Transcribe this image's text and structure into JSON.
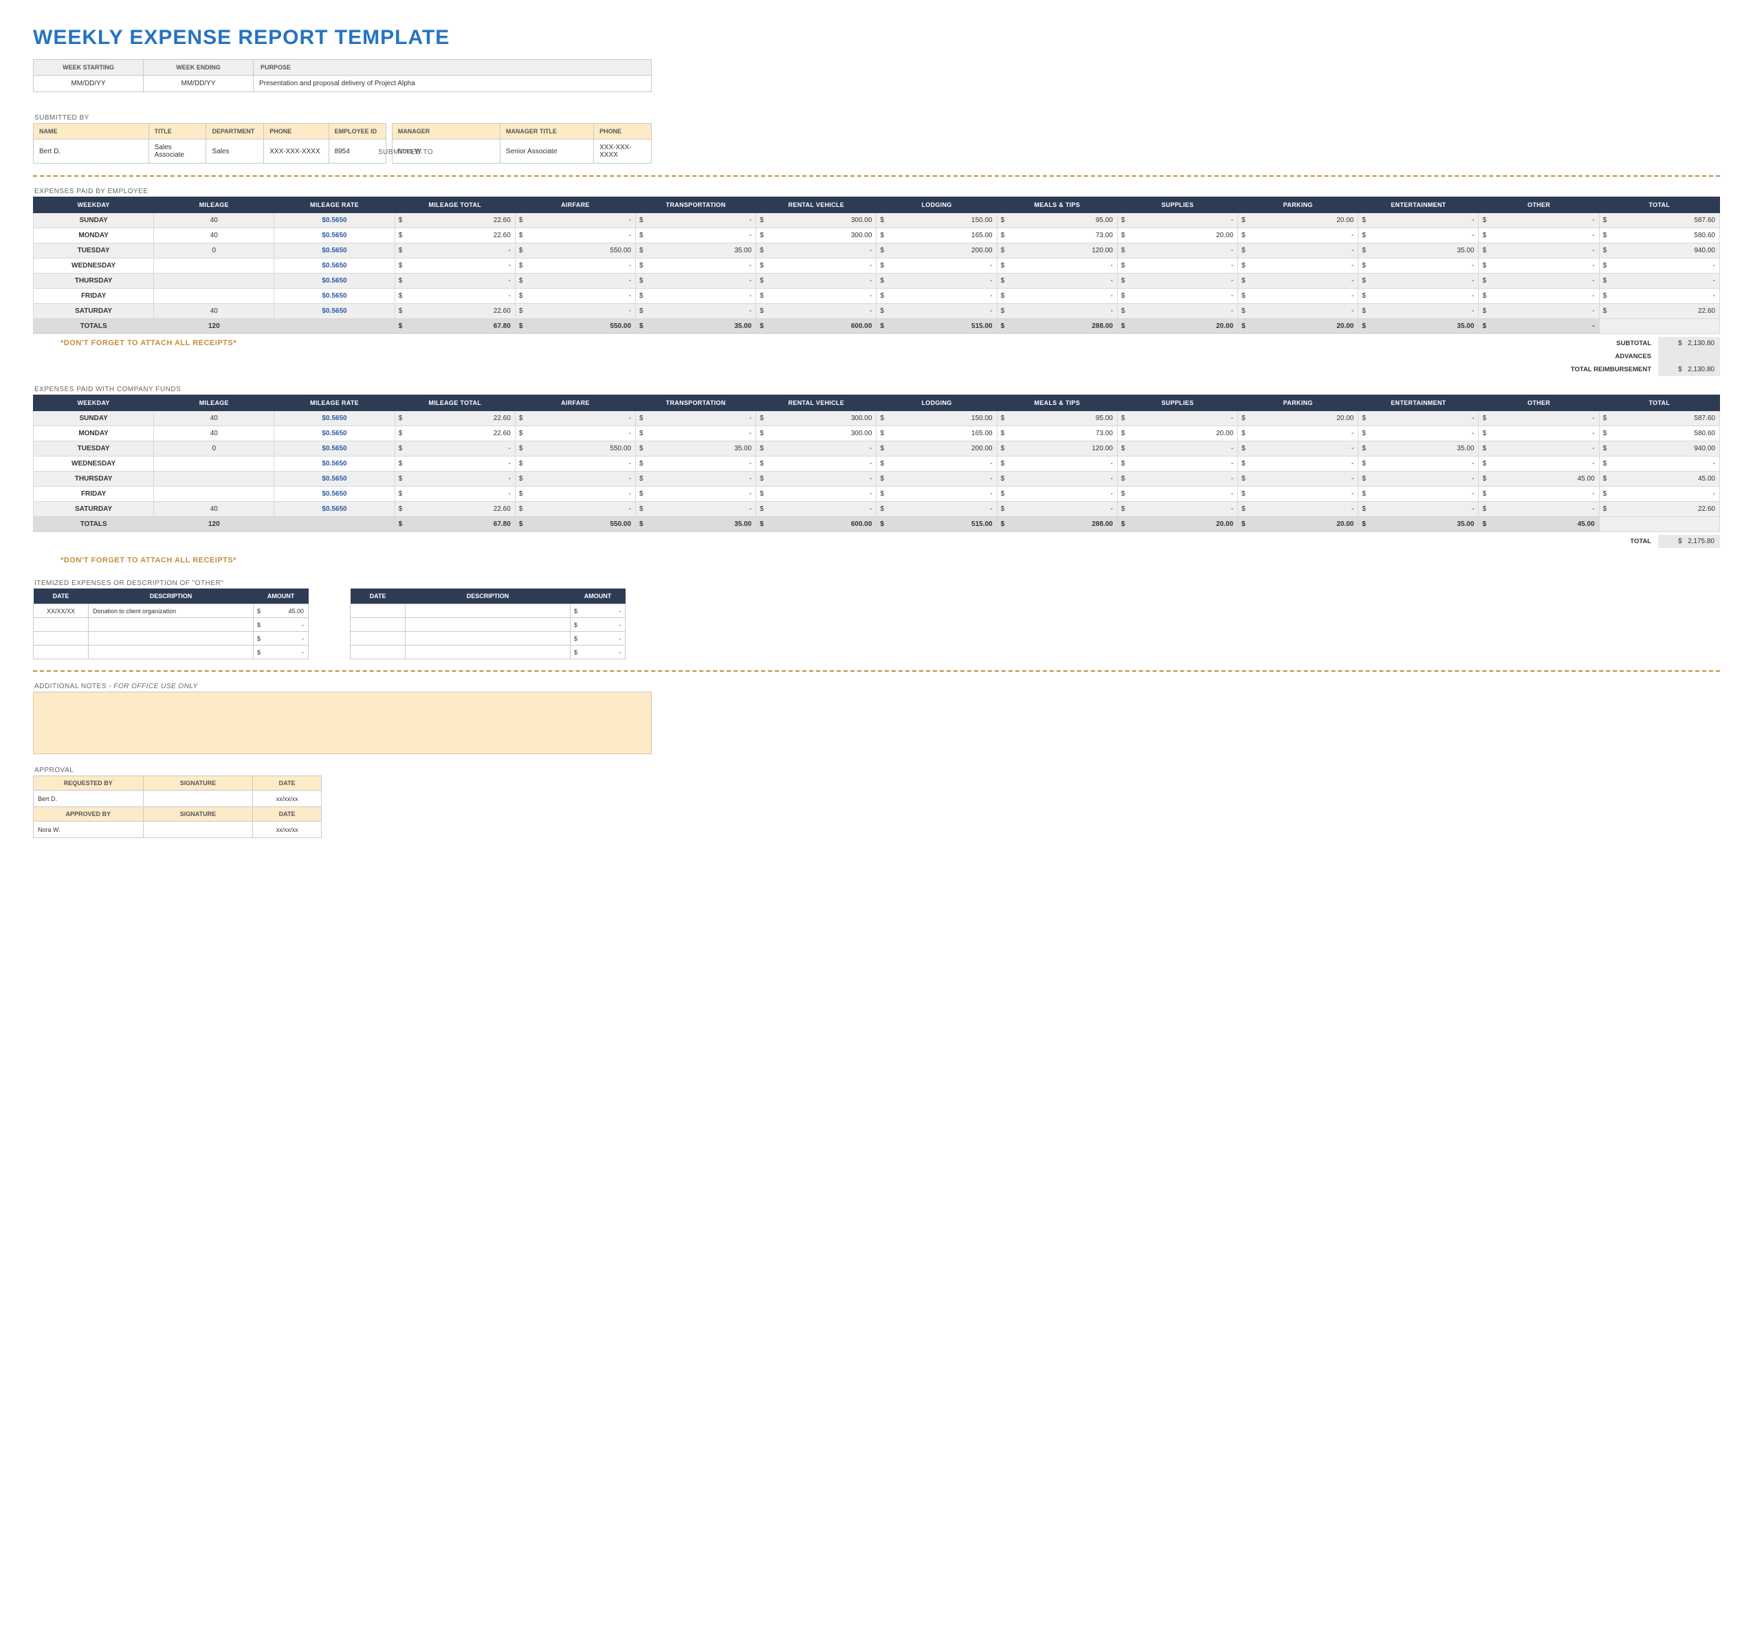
{
  "title": "WEEKLY EXPENSE REPORT TEMPLATE",
  "colors": {
    "title": "#2573c1",
    "header_dark": "#2e3b54",
    "cream": "#fdebc8",
    "row_alt": "#efefef",
    "totals_bg": "#dcdcdc",
    "dashed": "#c58c3a",
    "rate_color": "#2e5aa8",
    "note_color": "#c58c3a"
  },
  "meta": {
    "headers": {
      "week_starting": "WEEK STARTING",
      "week_ending": "WEEK ENDING",
      "purpose": "PURPOSE"
    },
    "week_starting": "MM/DD/YY",
    "week_ending": "MM/DD/YY",
    "purpose": "Presentation and proposal delivery of Project Alpha"
  },
  "submitted_by": {
    "label": "SUBMITTED BY",
    "headers": {
      "name": "NAME",
      "title": "TITLE",
      "department": "DEPARTMENT",
      "phone": "PHONE",
      "employee_id": "EMPLOYEE ID"
    },
    "name": "Bert D.",
    "title": "Sales Associate",
    "department": "Sales",
    "phone": "XXX-XXX-XXXX",
    "employee_id": "8954"
  },
  "submitted_to": {
    "label": "SUBMITTED TO",
    "headers": {
      "manager": "MANAGER",
      "manager_title": "MANAGER TITLE",
      "phone": "PHONE"
    },
    "manager": "Nora W.",
    "manager_title": "Senior Associate",
    "phone": "XXX-XXX-XXXX"
  },
  "expense_columns": [
    "WEEKDAY",
    "MILEAGE",
    "MILEAGE RATE",
    "MILEAGE TOTAL",
    "AIRFARE",
    "TRANSPORTATION",
    "RENTAL VEHICLE",
    "LODGING",
    "MEALS & TIPS",
    "SUPPLIES",
    "PARKING",
    "ENTERTAINMENT",
    "OTHER",
    "TOTAL"
  ],
  "mileage_rate_display": "$0.5650",
  "dash": "-",
  "currency": "$",
  "employee_section": {
    "label": "EXPENSES PAID BY EMPLOYEE",
    "rows": [
      {
        "day": "SUNDAY",
        "mileage": "40",
        "mileage_total": "22.60",
        "airfare": "-",
        "transport": "-",
        "rental": "300.00",
        "lodging": "150.00",
        "meals": "95.00",
        "supplies": "-",
        "parking": "20.00",
        "entertainment": "-",
        "other": "-",
        "total": "587.60"
      },
      {
        "day": "MONDAY",
        "mileage": "40",
        "mileage_total": "22.60",
        "airfare": "-",
        "transport": "-",
        "rental": "300.00",
        "lodging": "165.00",
        "meals": "73.00",
        "supplies": "20.00",
        "parking": "-",
        "entertainment": "-",
        "other": "-",
        "total": "580.60"
      },
      {
        "day": "TUESDAY",
        "mileage": "0",
        "mileage_total": "-",
        "airfare": "550.00",
        "transport": "35.00",
        "rental": "-",
        "lodging": "200.00",
        "meals": "120.00",
        "supplies": "-",
        "parking": "-",
        "entertainment": "35.00",
        "other": "-",
        "total": "940.00"
      },
      {
        "day": "WEDNESDAY",
        "mileage": "",
        "mileage_total": "-",
        "airfare": "-",
        "transport": "-",
        "rental": "-",
        "lodging": "-",
        "meals": "-",
        "supplies": "-",
        "parking": "-",
        "entertainment": "-",
        "other": "-",
        "total": "-"
      },
      {
        "day": "THURSDAY",
        "mileage": "",
        "mileage_total": "-",
        "airfare": "-",
        "transport": "-",
        "rental": "-",
        "lodging": "-",
        "meals": "-",
        "supplies": "-",
        "parking": "-",
        "entertainment": "-",
        "other": "-",
        "total": "-"
      },
      {
        "day": "FRIDAY",
        "mileage": "",
        "mileage_total": "-",
        "airfare": "-",
        "transport": "-",
        "rental": "-",
        "lodging": "-",
        "meals": "-",
        "supplies": "-",
        "parking": "-",
        "entertainment": "-",
        "other": "-",
        "total": "-"
      },
      {
        "day": "SATURDAY",
        "mileage": "40",
        "mileage_total": "22.60",
        "airfare": "-",
        "transport": "-",
        "rental": "-",
        "lodging": "-",
        "meals": "-",
        "supplies": "-",
        "parking": "-",
        "entertainment": "-",
        "other": "-",
        "total": "22.60"
      }
    ],
    "totals": {
      "day": "TOTALS",
      "mileage": "120",
      "mileage_total": "67.80",
      "airfare": "550.00",
      "transport": "35.00",
      "rental": "600.00",
      "lodging": "515.00",
      "meals": "288.00",
      "supplies": "20.00",
      "parking": "20.00",
      "entertainment": "35.00",
      "other": "-",
      "total": ""
    },
    "summary": {
      "subtotal_label": "SUBTOTAL",
      "subtotal": "2,130.80",
      "advances_label": "ADVANCES",
      "advances": "",
      "reimbursement_label": "TOTAL REIMBURSEMENT",
      "reimbursement": "2,130.80"
    }
  },
  "company_section": {
    "label": "EXPENSES PAID WITH COMPANY FUNDS",
    "rows": [
      {
        "day": "SUNDAY",
        "mileage": "40",
        "mileage_total": "22.60",
        "airfare": "-",
        "transport": "-",
        "rental": "300.00",
        "lodging": "150.00",
        "meals": "95.00",
        "supplies": "-",
        "parking": "20.00",
        "entertainment": "-",
        "other": "-",
        "total": "587.60"
      },
      {
        "day": "MONDAY",
        "mileage": "40",
        "mileage_total": "22.60",
        "airfare": "-",
        "transport": "-",
        "rental": "300.00",
        "lodging": "165.00",
        "meals": "73.00",
        "supplies": "20.00",
        "parking": "-",
        "entertainment": "-",
        "other": "-",
        "total": "580.60"
      },
      {
        "day": "TUESDAY",
        "mileage": "0",
        "mileage_total": "-",
        "airfare": "550.00",
        "transport": "35.00",
        "rental": "-",
        "lodging": "200.00",
        "meals": "120.00",
        "supplies": "-",
        "parking": "-",
        "entertainment": "35.00",
        "other": "-",
        "total": "940.00"
      },
      {
        "day": "WEDNESDAY",
        "mileage": "",
        "mileage_total": "-",
        "airfare": "-",
        "transport": "-",
        "rental": "-",
        "lodging": "-",
        "meals": "-",
        "supplies": "-",
        "parking": "-",
        "entertainment": "-",
        "other": "-",
        "total": "-"
      },
      {
        "day": "THURSDAY",
        "mileage": "",
        "mileage_total": "-",
        "airfare": "-",
        "transport": "-",
        "rental": "-",
        "lodging": "-",
        "meals": "-",
        "supplies": "-",
        "parking": "-",
        "entertainment": "-",
        "other": "45.00",
        "total": "45.00"
      },
      {
        "day": "FRIDAY",
        "mileage": "",
        "mileage_total": "-",
        "airfare": "-",
        "transport": "-",
        "rental": "-",
        "lodging": "-",
        "meals": "-",
        "supplies": "-",
        "parking": "-",
        "entertainment": "-",
        "other": "-",
        "total": "-"
      },
      {
        "day": "SATURDAY",
        "mileage": "40",
        "mileage_total": "22.60",
        "airfare": "-",
        "transport": "-",
        "rental": "-",
        "lodging": "-",
        "meals": "-",
        "supplies": "-",
        "parking": "-",
        "entertainment": "-",
        "other": "-",
        "total": "22.60"
      }
    ],
    "totals": {
      "day": "TOTALS",
      "mileage": "120",
      "mileage_total": "67.80",
      "airfare": "550.00",
      "transport": "35.00",
      "rental": "600.00",
      "lodging": "515.00",
      "meals": "288.00",
      "supplies": "20.00",
      "parking": "20.00",
      "entertainment": "35.00",
      "other": "45.00",
      "total": ""
    },
    "summary": {
      "total_label": "TOTAL",
      "total": "2,175.80"
    }
  },
  "receipts_note": "*DON'T FORGET TO ATTACH ALL RECEIPTS*",
  "itemized": {
    "label": "ITEMIZED EXPENSES OR DESCRIPTION OF \"OTHER\"",
    "headers": {
      "date": "DATE",
      "description": "DESCRIPTION",
      "amount": "AMOUNT"
    },
    "left": [
      {
        "date": "XX/XX/XX",
        "description": "Donation to client organization",
        "amount": "45.00"
      },
      {
        "date": "",
        "description": "",
        "amount": "-"
      },
      {
        "date": "",
        "description": "",
        "amount": "-"
      },
      {
        "date": "",
        "description": "",
        "amount": "-"
      }
    ],
    "right": [
      {
        "date": "",
        "description": "",
        "amount": "-"
      },
      {
        "date": "",
        "description": "",
        "amount": "-"
      },
      {
        "date": "",
        "description": "",
        "amount": "-"
      },
      {
        "date": "",
        "description": "",
        "amount": "-"
      }
    ]
  },
  "notes": {
    "label_a": "ADDITIONAL NOTES - ",
    "label_b": "FOR OFFICE USE ONLY"
  },
  "approval": {
    "label": "APPROVAL",
    "headers": {
      "requested": "REQUESTED BY",
      "approved": "APPROVED BY",
      "signature": "SIGNATURE",
      "date": "DATE"
    },
    "requested_by": "Bert D.",
    "requested_date": "xx/xx/xx",
    "approved_by": "Nora W.",
    "approved_date": "xx/xx/xx"
  }
}
